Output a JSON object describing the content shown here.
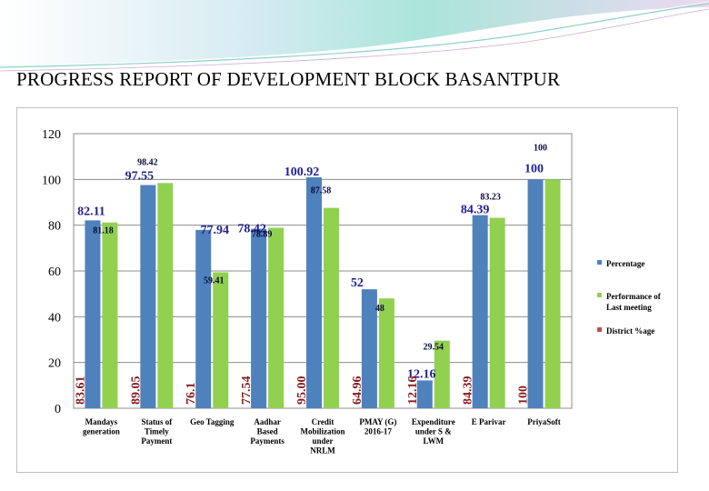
{
  "page": {
    "title": "PROGRESS REPORT OF DEVELOPMENT BLOCK BASANTPUR"
  },
  "colors": {
    "series_percentage": "#4f81bd",
    "series_last_meeting": "#92d050",
    "series_district": "#c0504d",
    "label_blue": "#1f1f8f",
    "label_dark": "#0a0a3a",
    "label_red": "#8b1a1a",
    "banner_swoosh": "#7fd6cf"
  },
  "chart_data": {
    "type": "bar",
    "ylim": [
      0,
      120
    ],
    "yticks": [
      "0",
      "20",
      "40",
      "60",
      "80",
      "100",
      "120"
    ],
    "grid": true,
    "legend_position": "right",
    "categories": [
      [
        "Mandays",
        "generation"
      ],
      [
        "Status of",
        "Timely",
        "Payment"
      ],
      [
        "Geo Tagging"
      ],
      [
        "Aadhar",
        "Based",
        "Payments"
      ],
      [
        "Credit",
        "Mobilization",
        "under",
        "NRLM"
      ],
      [
        "PMAY (G)",
        "2016-17"
      ],
      [
        "Expenditure",
        "under S &",
        "LWM"
      ],
      [
        "E Parivar"
      ],
      [
        "PriyaSoft"
      ]
    ],
    "series": [
      {
        "name": "Percentage",
        "values": [
          82.11,
          97.55,
          77.94,
          78.42,
          100.92,
          52,
          12.16,
          84.39,
          100
        ]
      },
      {
        "name": "Performance of Last meeting",
        "values": [
          81.18,
          98.42,
          59.41,
          78.89,
          87.58,
          48,
          29.54,
          83.23,
          100
        ]
      },
      {
        "name": "District %age",
        "values": [
          83.61,
          89.05,
          76.1,
          77.54,
          95.0,
          64.96,
          12.16,
          84.39,
          100
        ]
      }
    ],
    "label_text": {
      "percentage": [
        "82.11",
        "97.55",
        "77.94",
        "78.42",
        "100.92",
        "52",
        "12.16",
        "84.39",
        "100"
      ],
      "last_meeting": [
        "81.18",
        "98.42",
        "59.41",
        "78.89",
        "87.58",
        "48",
        "29.54",
        "83.23",
        "100"
      ],
      "district": [
        "83.61",
        "89.05",
        "76.1",
        "77.54",
        "95.00",
        "64.96",
        "12.16",
        "84.39",
        "100"
      ]
    },
    "legend_labels": [
      [
        "Percentage"
      ],
      [
        "Performance of",
        "Last meeting"
      ],
      [
        "District %age"
      ]
    ]
  }
}
